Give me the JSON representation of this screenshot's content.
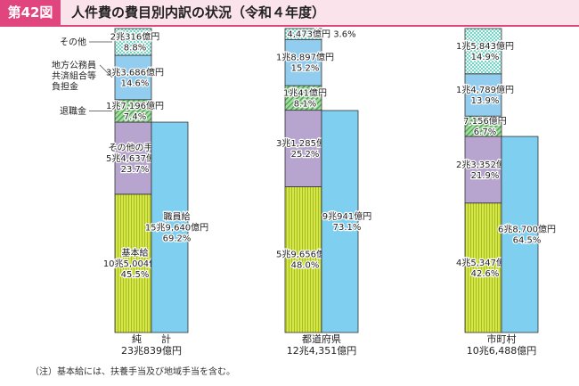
{
  "header": {
    "figure_number": "第42図",
    "title": "人件費の費目別内訳の状況（令和４年度）"
  },
  "note": "（注）基本給には、扶養手当及び地域手当を含む。",
  "colors": {
    "basic": "#d5e64a",
    "other_allow": "#b7a5d0",
    "retire": "#a6dca6",
    "pension": "#92cdef",
    "other": "#77d3c3",
    "staff": "#7fcff0"
  },
  "chart_data": {
    "type": "stacked-bar",
    "unit": "億円",
    "side_labels": {
      "other": "その他",
      "pension": [
        "地方公務員",
        "共済組合等",
        "負担金"
      ],
      "retire": "退職金"
    },
    "columns": [
      {
        "total_lines": [
          "純　　計",
          "23兆839億円"
        ],
        "left": [
          {
            "key": "basic",
            "name": "基本給",
            "amount": "10兆5,004億円",
            "pct": "45.5%",
            "value": 45.5
          },
          {
            "key": "other_allow",
            "name": "その他の手当",
            "amount": "5兆4,637億円",
            "pct": "23.7%",
            "value": 23.7
          },
          {
            "key": "retire",
            "name": "",
            "amount": "1兆7,196億円",
            "pct": "7.4%",
            "value": 7.4
          },
          {
            "key": "pension",
            "name": "",
            "amount": "3兆3,686億円",
            "pct": "14.6%",
            "value": 14.6
          },
          {
            "key": "other",
            "name": "",
            "amount": "2兆316億円",
            "pct": "8.8%",
            "value": 8.8
          }
        ],
        "staff": {
          "name": "職員給",
          "amount": "15兆9,640億円",
          "pct": "69.2%",
          "value": 69.2
        }
      },
      {
        "total_lines": [
          "都道府県",
          "12兆4,351億円"
        ],
        "left": [
          {
            "key": "basic",
            "name": "",
            "amount": "5兆9,656億円",
            "pct": "48.0%",
            "value": 48.0
          },
          {
            "key": "other_allow",
            "name": "",
            "amount": "3兆1,285億円",
            "pct": "25.2%",
            "value": 25.2
          },
          {
            "key": "retire",
            "name": "",
            "amount": "1兆41億円",
            "pct": "8.1%",
            "value": 8.1
          },
          {
            "key": "pension",
            "name": "",
            "amount": "1兆8,897億円",
            "pct": "15.2%",
            "value": 15.2
          },
          {
            "key": "other",
            "name": "",
            "amount": "4,473億円",
            "pct": "3.6%",
            "value": 3.6
          }
        ],
        "staff": {
          "name": "",
          "amount": "9兆941億円",
          "pct": "73.1%",
          "value": 73.1
        }
      },
      {
        "total_lines": [
          "市町村",
          "10兆6,488億円"
        ],
        "left": [
          {
            "key": "basic",
            "name": "",
            "amount": "4兆5,347億円",
            "pct": "42.6%",
            "value": 42.6
          },
          {
            "key": "other_allow",
            "name": "",
            "amount": "2兆3,352億円",
            "pct": "21.9%",
            "value": 21.9
          },
          {
            "key": "retire",
            "name": "",
            "amount": "7,156億円",
            "pct": "6.7%",
            "value": 6.7
          },
          {
            "key": "pension",
            "name": "",
            "amount": "1兆4,789億円",
            "pct": "13.9%",
            "value": 13.9
          },
          {
            "key": "other",
            "name": "",
            "amount": "1兆5,843億円",
            "pct": "14.9%",
            "value": 14.9
          }
        ],
        "staff": {
          "name": "",
          "amount": "6兆8,700億円",
          "pct": "64.5%",
          "value": 64.5
        }
      }
    ]
  }
}
